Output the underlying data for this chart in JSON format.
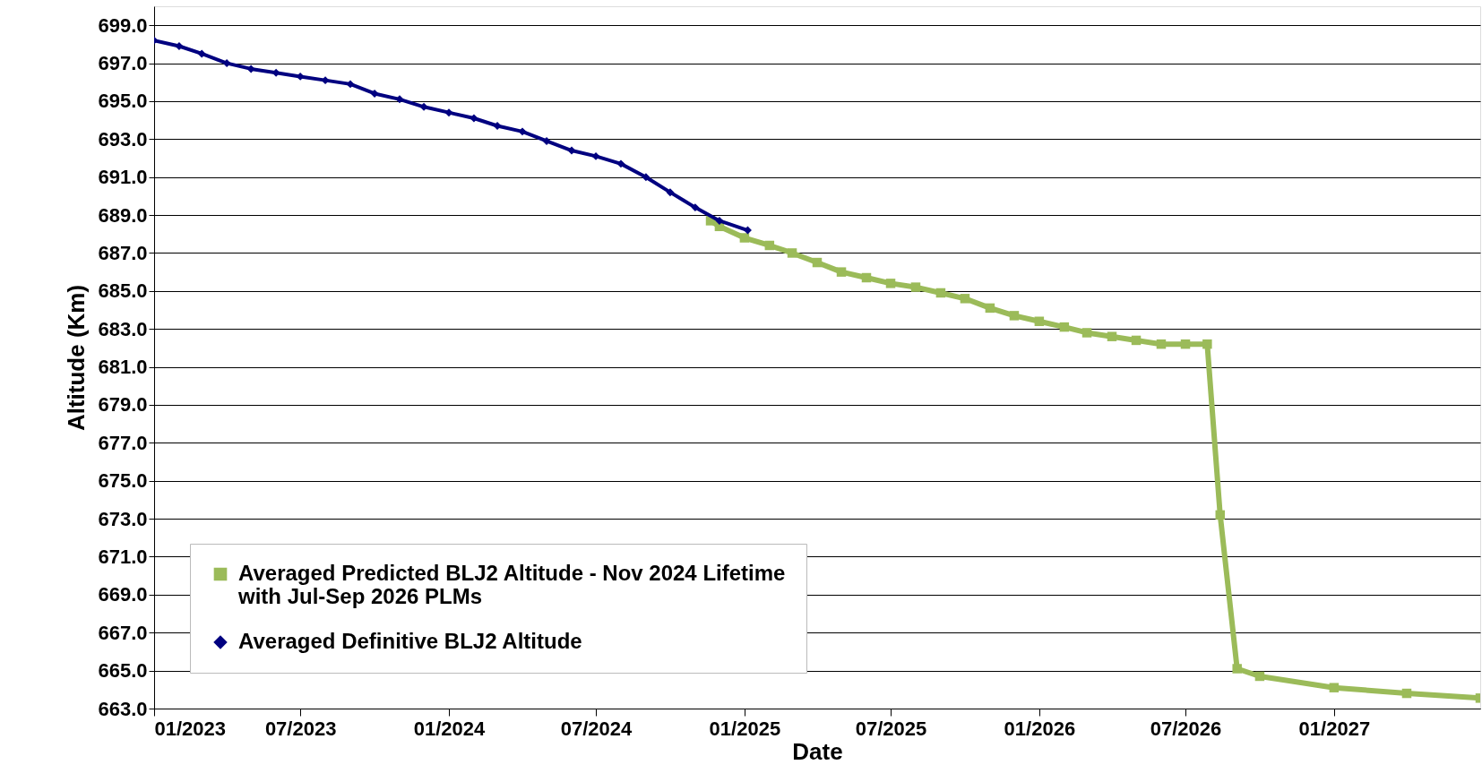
{
  "chart_data": {
    "type": "line",
    "xlabel": "Date",
    "ylabel": "Altitude (Km)",
    "xlim": [
      "2023-01-01",
      "2027-07-01"
    ],
    "ylim": [
      663,
      700
    ],
    "xticks": [
      {
        "value": "2023-01-01",
        "label": "01/2023"
      },
      {
        "value": "2023-07-01",
        "label": "07/2023"
      },
      {
        "value": "2024-01-01",
        "label": "01/2024"
      },
      {
        "value": "2024-07-01",
        "label": "07/2024"
      },
      {
        "value": "2025-01-01",
        "label": "01/2025"
      },
      {
        "value": "2025-07-01",
        "label": "07/2025"
      },
      {
        "value": "2026-01-01",
        "label": "01/2026"
      },
      {
        "value": "2026-07-01",
        "label": "07/2026"
      },
      {
        "value": "2027-01-01",
        "label": "01/2027"
      }
    ],
    "yticks": [
      {
        "value": 663,
        "label": "663.0"
      },
      {
        "value": 665,
        "label": "665.0"
      },
      {
        "value": 667,
        "label": "667.0"
      },
      {
        "value": 669,
        "label": "669.0"
      },
      {
        "value": 671,
        "label": "671.0"
      },
      {
        "value": 673,
        "label": "673.0"
      },
      {
        "value": 675,
        "label": "675.0"
      },
      {
        "value": 677,
        "label": "677.0"
      },
      {
        "value": 679,
        "label": "679.0"
      },
      {
        "value": 681,
        "label": "681.0"
      },
      {
        "value": 683,
        "label": "683.0"
      },
      {
        "value": 685,
        "label": "685.0"
      },
      {
        "value": 687,
        "label": "687.0"
      },
      {
        "value": 689,
        "label": "689.0"
      },
      {
        "value": 691,
        "label": "691.0"
      },
      {
        "value": 693,
        "label": "693.0"
      },
      {
        "value": 695,
        "label": "695.0"
      },
      {
        "value": 697,
        "label": "697.0"
      },
      {
        "value": 699,
        "label": "699.0"
      }
    ],
    "grid": "y",
    "legend": "bottom left",
    "series": [
      {
        "name": "Averaged Predicted BLJ2 Altitude - Nov 2024 Lifetime with Jul-Sep 2026 PLMs",
        "color": "#9bbb59",
        "marker": "square",
        "x": [
          "2024-11-20",
          "2024-12-01",
          "2025-01-01",
          "2025-02-01",
          "2025-03-01",
          "2025-04-01",
          "2025-05-01",
          "2025-06-01",
          "2025-07-01",
          "2025-08-01",
          "2025-09-01",
          "2025-10-01",
          "2025-11-01",
          "2025-12-01",
          "2026-01-01",
          "2026-02-01",
          "2026-03-01",
          "2026-04-01",
          "2026-05-01",
          "2026-06-01",
          "2026-07-01",
          "2026-07-28",
          "2026-08-13",
          "2026-09-03",
          "2026-10-01",
          "2027-01-01",
          "2027-04-01",
          "2027-07-01"
        ],
        "values": [
          688.7,
          688.4,
          687.8,
          687.4,
          687.0,
          686.5,
          686.0,
          685.7,
          685.4,
          685.2,
          684.9,
          684.6,
          684.1,
          683.7,
          683.4,
          683.1,
          682.8,
          682.6,
          682.4,
          682.2,
          682.2,
          682.2,
          673.2,
          665.1,
          664.7,
          664.1,
          663.8,
          663.55
        ]
      },
      {
        "name": "Averaged Definitive BLJ2 Altitude",
        "color": "#000080",
        "marker": "diamond",
        "x": [
          "2023-01-01",
          "2023-02-01",
          "2023-03-01",
          "2023-04-01",
          "2023-05-01",
          "2023-06-01",
          "2023-07-01",
          "2023-08-01",
          "2023-09-01",
          "2023-10-01",
          "2023-11-01",
          "2023-12-01",
          "2024-01-01",
          "2024-02-01",
          "2024-03-01",
          "2024-04-01",
          "2024-05-01",
          "2024-06-01",
          "2024-07-01",
          "2024-08-01",
          "2024-09-01",
          "2024-10-01",
          "2024-11-01",
          "2024-12-01",
          "2025-01-05"
        ],
        "values": [
          698.2,
          697.9,
          697.5,
          697.0,
          696.7,
          696.5,
          696.3,
          696.1,
          695.9,
          695.4,
          695.1,
          694.7,
          694.4,
          694.1,
          693.7,
          693.4,
          692.9,
          692.4,
          692.1,
          691.7,
          691.0,
          690.2,
          689.4,
          688.7,
          688.2
        ]
      }
    ]
  }
}
